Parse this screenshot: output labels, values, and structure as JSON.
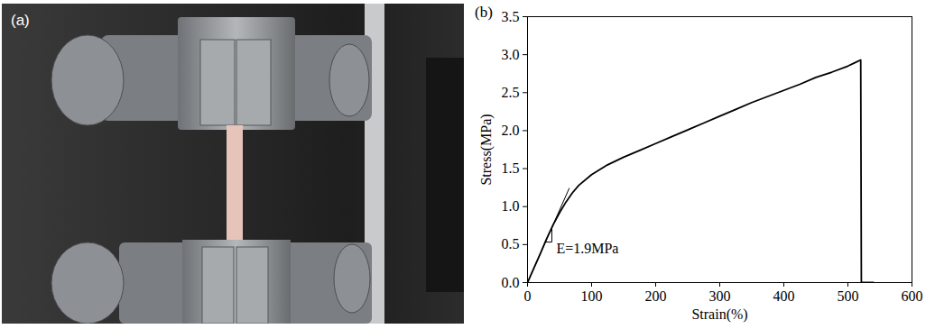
{
  "photo": {
    "label": "(a)"
  },
  "chart_data": {
    "type": "line",
    "panel_label": "(b)",
    "x_label": "Strain(%)",
    "y_label": "Stress(MPa)",
    "x": [
      0,
      10,
      20,
      30,
      40,
      50,
      60,
      70,
      80,
      100,
      125,
      150,
      175,
      200,
      225,
      250,
      275,
      300,
      325,
      350,
      375,
      400,
      425,
      450,
      475,
      500,
      510,
      520,
      521,
      540
    ],
    "values": [
      0,
      0.19,
      0.38,
      0.58,
      0.76,
      0.92,
      1.06,
      1.18,
      1.28,
      1.42,
      1.55,
      1.65,
      1.74,
      1.83,
      1.92,
      2.01,
      2.1,
      2.19,
      2.28,
      2.37,
      2.45,
      2.53,
      2.61,
      2.7,
      2.77,
      2.85,
      2.89,
      2.93,
      0,
      0
    ],
    "color": "#000000",
    "tangent": {
      "x": [
        0,
        65
      ],
      "values": [
        0,
        1.24
      ]
    },
    "annotations": [
      {
        "text": "E=1.9MPa",
        "x": 45,
        "y": 0.45
      }
    ],
    "xlim": [
      0,
      600
    ],
    "xticks": [
      0,
      100,
      200,
      300,
      400,
      500,
      600
    ],
    "ylim": [
      0,
      3.5
    ],
    "yticks": [
      {
        "value": 0,
        "label": "0.0"
      },
      0.5,
      {
        "value": 1,
        "label": "1.0"
      },
      1.5,
      {
        "value": 2,
        "label": "2.0"
      },
      2.5,
      {
        "value": 3,
        "label": "3.0"
      },
      3.5
    ],
    "grid": false
  }
}
